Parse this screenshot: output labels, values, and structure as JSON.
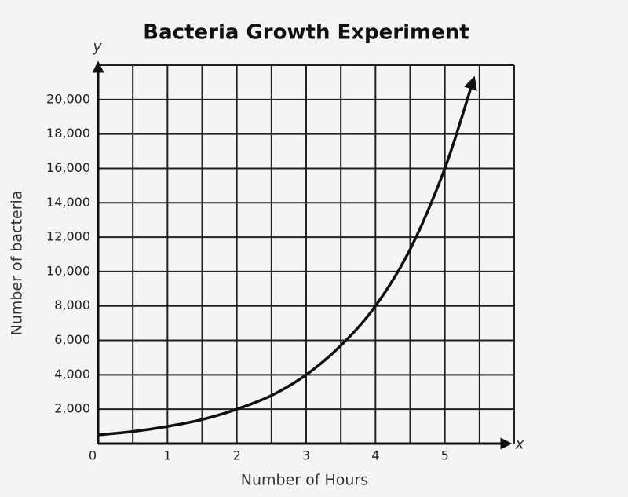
{
  "chart_data": {
    "type": "line",
    "title": "Bacteria Growth Experiment",
    "x_label": "Number of Hours",
    "y_label": "Number of bacteria",
    "x_axis_letter": "x",
    "y_axis_letter": "y",
    "x": [
      0,
      0.5,
      1,
      1.5,
      2,
      2.5,
      3,
      3.5,
      4,
      4.5,
      5,
      5.4
    ],
    "values": [
      500,
      700,
      1000,
      1400,
      2000,
      2800,
      4000,
      5700,
      8000,
      11300,
      16000,
      21000
    ],
    "color": "#111111",
    "xlim": [
      0,
      6
    ],
    "ylim": [
      0,
      22000
    ],
    "xticks": [
      0,
      1,
      2,
      3,
      4,
      5
    ],
    "x_minor_grid": [
      0.5,
      1.5,
      2.5,
      3.5,
      4.5,
      5.5,
      6
    ],
    "yticks": [
      {
        "value": 2000,
        "label": "2,000"
      },
      {
        "value": 4000,
        "label": "4,000"
      },
      {
        "value": 6000,
        "label": "6,000"
      },
      {
        "value": 8000,
        "label": "8,000"
      },
      {
        "value": 10000,
        "label": "10,000"
      },
      {
        "value": 12000,
        "label": "12,000"
      },
      {
        "value": 14000,
        "label": "14,000"
      },
      {
        "value": 16000,
        "label": "16,000"
      },
      {
        "value": 18000,
        "label": "18,000"
      },
      {
        "value": 20000,
        "label": "20,000"
      },
      {
        "value": 22000,
        "label": ""
      }
    ],
    "grid": true
  }
}
